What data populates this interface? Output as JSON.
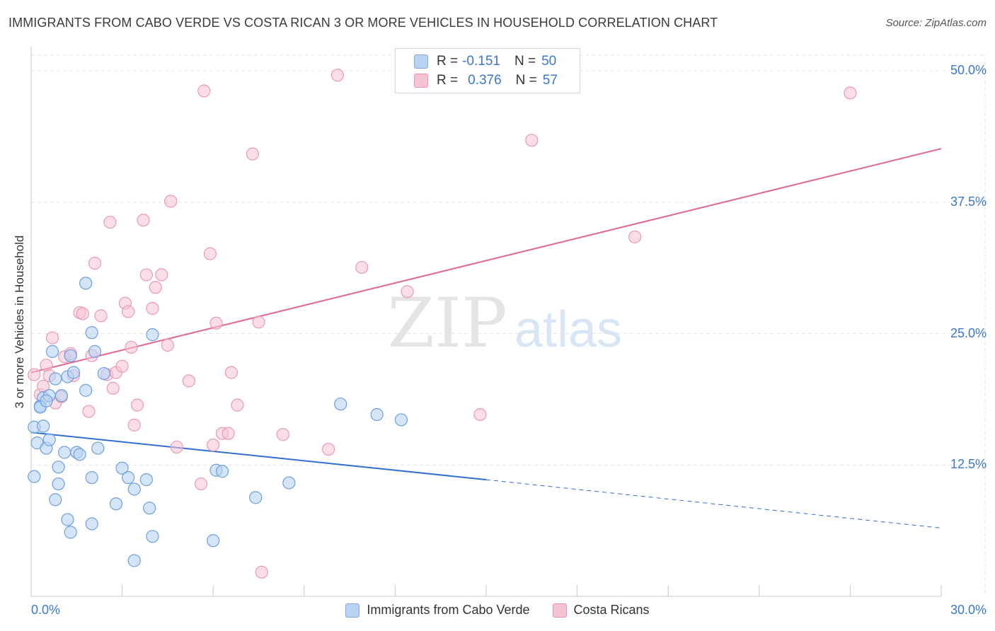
{
  "title": "IMMIGRANTS FROM CABO VERDE VS COSTA RICAN 3 OR MORE VEHICLES IN HOUSEHOLD CORRELATION CHART",
  "source": "Source: ZipAtlas.com",
  "watermark": {
    "zip": "ZIP",
    "atlas": "atlas"
  },
  "colors": {
    "blue": "#3a78c9",
    "blue_fill": "#b8d3f3",
    "blue_line": "#2e6fd0",
    "pink": "#e0709a",
    "pink_fill": "#f6c3d3",
    "pink_line": "#e06894",
    "grid": "#e3e3e3",
    "axis_text": "#3a78c9"
  },
  "legend_top": {
    "blue": {
      "r_label": "R =",
      "r_value": "-0.151",
      "n_label": "N =",
      "n_value": "50"
    },
    "pink": {
      "r_label": "R =",
      "r_value": "0.376",
      "n_label": "N =",
      "n_value": "57"
    }
  },
  "legend_bottom": {
    "blue": "Immigrants from Cabo Verde",
    "pink": "Costa Ricans"
  },
  "chart_data": {
    "type": "scatter",
    "title": "IMMIGRANTS FROM CABO VERDE VS COSTA RICAN 3 OR MORE VEHICLES IN HOUSEHOLD CORRELATION CHART",
    "xlabel": "",
    "ylabel": "3 or more Vehicles in Household",
    "xlim": [
      0,
      30
    ],
    "ylim": [
      0,
      51.5
    ],
    "x_tick_labels": [
      "0.0%",
      "30.0%"
    ],
    "y_ticks": [
      12.5,
      25.0,
      37.5,
      50.0
    ],
    "y_tick_labels": [
      "12.5%",
      "25.0%",
      "37.5%",
      "50.0%"
    ],
    "series": [
      {
        "name": "Immigrants from Cabo Verde",
        "color": "#3a78c9",
        "trend": {
          "x0": 0.0,
          "y0": 15.6,
          "x1": 15.0,
          "y1": 11.1,
          "dash_x1": 30.0,
          "dash_y1": 6.5
        },
        "points": [
          [
            0.1,
            16.1
          ],
          [
            0.2,
            14.6
          ],
          [
            0.4,
            16.2
          ],
          [
            0.5,
            14.1
          ],
          [
            0.6,
            14.9
          ],
          [
            0.3,
            18.1
          ],
          [
            0.4,
            18.9
          ],
          [
            0.6,
            19.1
          ],
          [
            0.8,
            20.7
          ],
          [
            0.7,
            23.3
          ],
          [
            1.0,
            19.1
          ],
          [
            1.2,
            20.9
          ],
          [
            1.3,
            22.9
          ],
          [
            1.4,
            21.3
          ],
          [
            1.8,
            19.6
          ],
          [
            2.1,
            23.3
          ],
          [
            2.0,
            25.1
          ],
          [
            2.4,
            21.2
          ],
          [
            2.2,
            14.1
          ],
          [
            1.1,
            13.7
          ],
          [
            1.5,
            13.7
          ],
          [
            1.6,
            13.5
          ],
          [
            0.9,
            12.3
          ],
          [
            0.9,
            10.7
          ],
          [
            0.1,
            11.4
          ],
          [
            0.8,
            9.2
          ],
          [
            1.2,
            7.3
          ],
          [
            1.3,
            6.1
          ],
          [
            2.0,
            11.3
          ],
          [
            2.0,
            6.9
          ],
          [
            2.8,
            8.8
          ],
          [
            3.0,
            12.2
          ],
          [
            3.2,
            11.3
          ],
          [
            3.4,
            10.2
          ],
          [
            3.8,
            11.1
          ],
          [
            3.9,
            8.4
          ],
          [
            4.0,
            5.7
          ],
          [
            3.4,
            3.4
          ],
          [
            1.8,
            29.8
          ],
          [
            4.0,
            24.9
          ],
          [
            6.1,
            12.0
          ],
          [
            6.3,
            11.9
          ],
          [
            6.0,
            5.3
          ],
          [
            7.4,
            9.4
          ],
          [
            8.5,
            10.8
          ],
          [
            10.2,
            18.3
          ],
          [
            11.4,
            17.3
          ],
          [
            12.2,
            16.8
          ],
          [
            0.3,
            18.0
          ],
          [
            0.5,
            18.6
          ]
        ]
      },
      {
        "name": "Costa Ricans",
        "color": "#e0709a",
        "trend": {
          "x0": 0.0,
          "y0": 21.3,
          "x1": 30.0,
          "y1": 42.6
        },
        "points": [
          [
            0.1,
            21.1
          ],
          [
            0.3,
            19.2
          ],
          [
            0.4,
            20.0
          ],
          [
            0.5,
            22.0
          ],
          [
            0.6,
            21.0
          ],
          [
            0.7,
            24.6
          ],
          [
            0.8,
            18.4
          ],
          [
            1.0,
            19.0
          ],
          [
            1.1,
            22.8
          ],
          [
            1.3,
            23.1
          ],
          [
            1.4,
            21.0
          ],
          [
            1.6,
            27.0
          ],
          [
            1.7,
            26.9
          ],
          [
            1.9,
            17.6
          ],
          [
            2.0,
            22.9
          ],
          [
            2.1,
            31.7
          ],
          [
            2.3,
            26.7
          ],
          [
            2.5,
            21.1
          ],
          [
            2.6,
            35.6
          ],
          [
            2.7,
            19.8
          ],
          [
            2.8,
            21.3
          ],
          [
            3.0,
            21.9
          ],
          [
            3.1,
            27.9
          ],
          [
            3.2,
            27.1
          ],
          [
            3.3,
            23.7
          ],
          [
            3.4,
            16.3
          ],
          [
            3.5,
            18.2
          ],
          [
            3.7,
            35.8
          ],
          [
            3.8,
            30.6
          ],
          [
            4.0,
            27.4
          ],
          [
            4.1,
            29.4
          ],
          [
            4.3,
            30.6
          ],
          [
            4.5,
            23.9
          ],
          [
            4.6,
            37.6
          ],
          [
            4.8,
            14.2
          ],
          [
            5.2,
            20.5
          ],
          [
            5.6,
            10.7
          ],
          [
            5.7,
            48.1
          ],
          [
            5.9,
            32.6
          ],
          [
            6.0,
            14.4
          ],
          [
            6.1,
            26.0
          ],
          [
            6.3,
            15.5
          ],
          [
            6.5,
            15.5
          ],
          [
            6.6,
            21.3
          ],
          [
            6.8,
            18.2
          ],
          [
            7.3,
            42.1
          ],
          [
            7.5,
            26.1
          ],
          [
            7.6,
            2.3
          ],
          [
            8.3,
            15.4
          ],
          [
            9.8,
            14.0
          ],
          [
            10.1,
            49.6
          ],
          [
            10.9,
            31.3
          ],
          [
            12.4,
            29.0
          ],
          [
            14.8,
            17.3
          ],
          [
            16.5,
            43.4
          ],
          [
            19.9,
            34.2
          ],
          [
            27.0,
            47.9
          ]
        ]
      }
    ]
  }
}
